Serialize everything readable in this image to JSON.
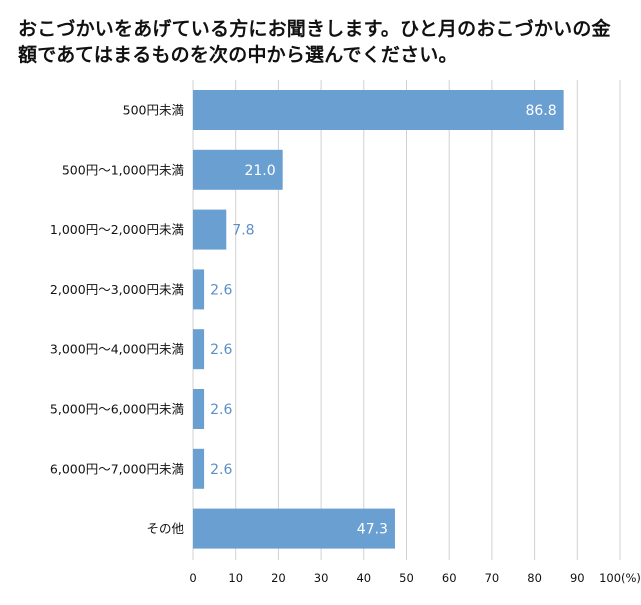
{
  "chart_data": {
    "type": "bar",
    "orientation": "horizontal",
    "title": "おこづかいをあげている方にお聞きします。ひと月のおこづかいの金額であてはまるものを次の中から選んでください。",
    "categories": [
      "500円未満",
      "500円～1,000円未満",
      "1,000円～2,000円未満",
      "2,000円～3,000円未満",
      "3,000円～4,000円未満",
      "5,000円～6,000円未満",
      "6,000円～7,000円未満",
      "その他"
    ],
    "values": [
      86.8,
      21.0,
      7.8,
      2.6,
      2.6,
      2.6,
      2.6,
      47.3
    ],
    "value_labels": [
      "86.8",
      "21.0",
      "7.8",
      "2.6",
      "2.6",
      "2.6",
      "2.6",
      "47.3"
    ],
    "xlim": [
      0,
      100
    ],
    "x_ticks": [
      0,
      10,
      20,
      30,
      40,
      50,
      60,
      70,
      80,
      90,
      100
    ],
    "x_tick_labels": [
      "0",
      "10",
      "20",
      "30",
      "40",
      "50",
      "60",
      "70",
      "80",
      "90",
      "100(%)"
    ],
    "xlabel": "",
    "ylabel": "",
    "grid": true,
    "bar_color": "#6a9fd2",
    "label_outside_color": "#5b8fc7",
    "grid_color": "#d0d0d0"
  }
}
